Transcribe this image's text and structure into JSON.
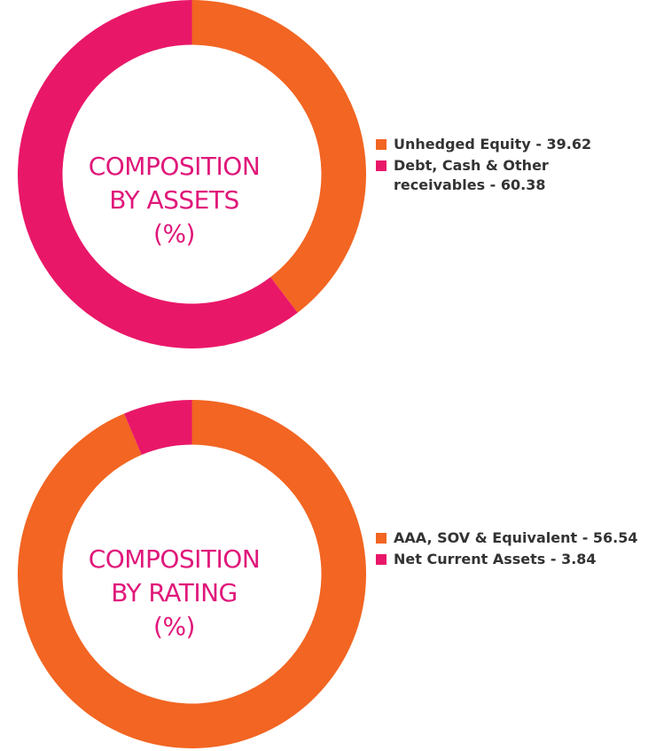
{
  "colors": {
    "orange": "#f26522",
    "pink": "#e91768",
    "label": "#e0177a"
  },
  "chart_data": [
    {
      "type": "pie",
      "variant": "donut",
      "title_lines": [
        "COMPOSITION",
        "BY ASSETS",
        "(%)"
      ],
      "series": [
        {
          "name": "Unhedged Equity - 39.62",
          "value": 39.62,
          "color": "#f26522"
        },
        {
          "name": "Debt, Cash & Other receivables - 60.38",
          "value": 60.38,
          "color": "#e91768"
        }
      ],
      "legend_position": "right"
    },
    {
      "type": "pie",
      "variant": "donut",
      "title_lines": [
        "COMPOSITION",
        "BY RATING",
        "(%)"
      ],
      "series": [
        {
          "name": "AAA, SOV & Equivalent - 56.54",
          "value": 56.54,
          "color": "#f26522"
        },
        {
          "name": "Net Current Assets - 3.84",
          "value": 3.84,
          "color": "#e91768"
        }
      ],
      "legend_position": "right"
    }
  ]
}
